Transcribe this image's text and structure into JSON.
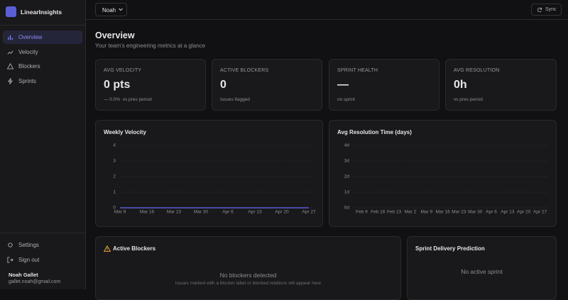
{
  "sidebar": {
    "brand": "LinearInsights",
    "nav": [
      "Overview",
      "Velocity",
      "Blockers",
      "Sprints"
    ],
    "footer": [
      "Settings",
      "Sign out"
    ],
    "user": {
      "name": "Noah Gallet",
      "email": "gallet.noah@gmail.com"
    }
  },
  "topbar": {
    "selector": "Noah",
    "button": "Sync"
  },
  "header": {
    "title": "Overview",
    "subtitle": "Your team's engineering metrics at a glance"
  },
  "stats": [
    {
      "label": "AVG VELOCITY",
      "value": "0 pts",
      "delta": "— 0.0%",
      "note": "vs prev period"
    },
    {
      "label": "ACTIVE BLOCKERS",
      "value": "0",
      "note": "Issues flagged"
    },
    {
      "label": "SPRINT HEALTH",
      "value": "—",
      "note": "no sprint"
    },
    {
      "label": "AVG RESOLUTION",
      "value": "0h",
      "note": "vs prev period"
    }
  ],
  "chart_data": [
    {
      "type": "line",
      "title": "Weekly Velocity",
      "categories": [
        "Mar 9",
        "Mar 16",
        "Mar 23",
        "Mar 30",
        "Apr 6",
        "Apr 13",
        "Apr 20",
        "Apr 27"
      ],
      "values": [
        0,
        0,
        0,
        0,
        0,
        0,
        0,
        0
      ],
      "color": "#5b5fd6",
      "ylim": [
        0,
        4
      ],
      "yticks": [
        0,
        1,
        2,
        3,
        4
      ],
      "grid": true
    },
    {
      "type": "bar",
      "title": "Avg Resolution Time (days)",
      "categories": [
        "Feb 9",
        "Feb 16",
        "Feb 23",
        "Mar 2",
        "Mar 9",
        "Mar 16",
        "Mar 23",
        "Mar 30",
        "Apr 6",
        "Apr 13",
        "Apr 20",
        "Apr 27"
      ],
      "values": [
        0,
        0,
        0,
        0,
        0,
        0,
        0,
        0,
        0,
        0,
        0,
        0
      ],
      "color": "#5b5fd6",
      "ylim": [
        0,
        4
      ],
      "yticks": [
        {
          "value": 0,
          "label": "0d"
        },
        {
          "value": 1,
          "label": "1d"
        },
        {
          "value": 2,
          "label": "2d"
        },
        {
          "value": 3,
          "label": "3d"
        },
        {
          "value": 4,
          "label": "4d"
        }
      ],
      "grid": true
    }
  ],
  "panels": [
    {
      "title": "Active Blockers",
      "message": "No blockers detected",
      "note": "Issues marked with a blocker label or blocked relations will appear here"
    },
    {
      "title": "Sprint Delivery Prediction",
      "message": "No active sprint"
    }
  ]
}
